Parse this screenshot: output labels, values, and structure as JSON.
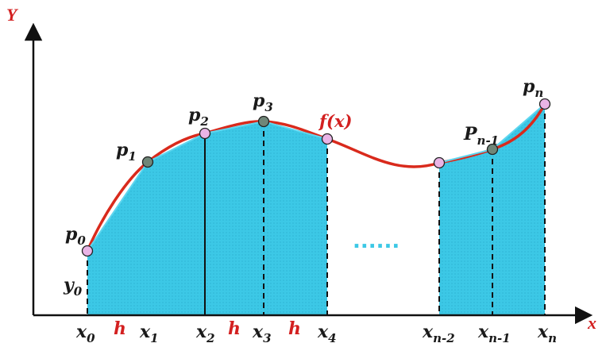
{
  "axes": {
    "y_label": "Y",
    "x_label": "x"
  },
  "curve_label": "f(x)",
  "points": [
    {
      "name": "p",
      "sub": "0"
    },
    {
      "name": "p",
      "sub": "1"
    },
    {
      "name": "p",
      "sub": "2"
    },
    {
      "name": "p",
      "sub": "3"
    },
    {
      "name": "P",
      "sub": "n-1"
    },
    {
      "name": "p",
      "sub": "n"
    }
  ],
  "x_ticks": [
    {
      "name": "x",
      "sub": "0"
    },
    {
      "name": "x",
      "sub": "1"
    },
    {
      "name": "x",
      "sub": "2"
    },
    {
      "name": "x",
      "sub": "3"
    },
    {
      "name": "x",
      "sub": "4"
    },
    {
      "name": "x",
      "sub": "n-2"
    },
    {
      "name": "x",
      "sub": "n-1"
    },
    {
      "name": "x",
      "sub": "n"
    }
  ],
  "step_label": "h",
  "y0_label": {
    "name": "y",
    "sub": "0"
  },
  "ellipsis": "......",
  "colors": {
    "fill": "#3cc8e6",
    "curve": "#d92a1c",
    "axis": "#111111",
    "hollow_point": "#e9b4e6",
    "dark_point": "#6f8678",
    "ellipsis": "#3cc8e6"
  }
}
